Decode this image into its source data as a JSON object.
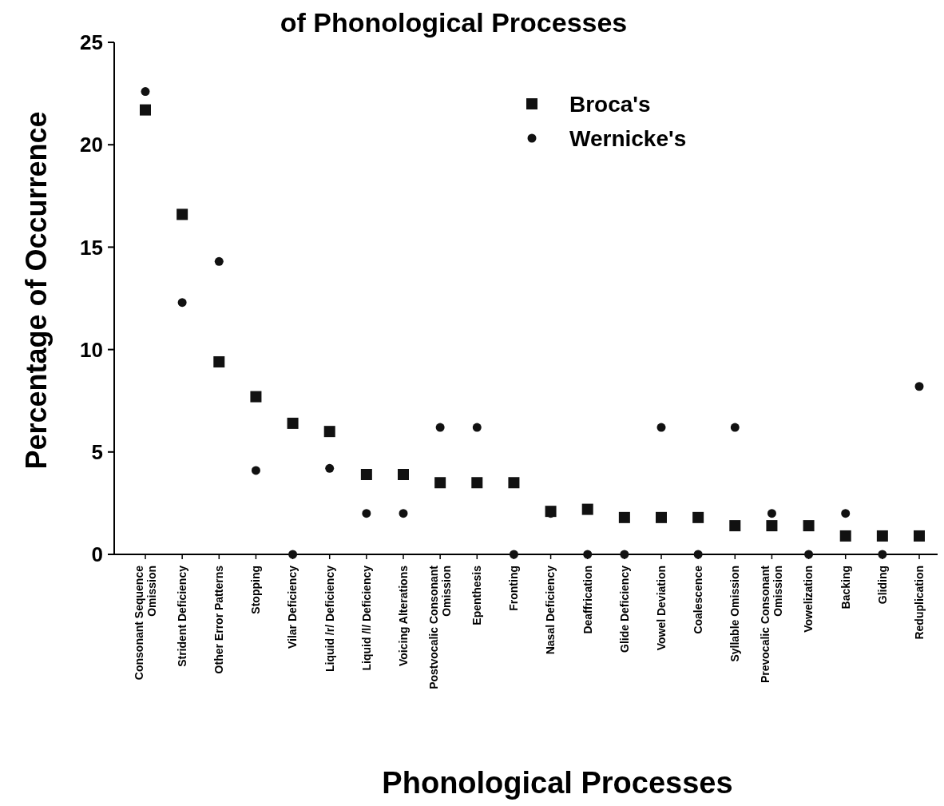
{
  "chart_data": {
    "type": "scatter",
    "title": "of Phonological Processes",
    "xlabel": "Phonological Processes",
    "ylabel": "Percentage of Occurrence",
    "categories": [
      "Consonant Sequence\nOmission",
      "Strident Deficiency",
      "Other Error Patterns",
      "Stopping",
      "Vilar Deficiency",
      "Liquid /r/ Deficiency",
      "Liquid /l/ Deficiency",
      "Voicing Alterations",
      "Postvocalic Consonant\nOmission",
      "Epenthesis",
      "Fronting",
      "Nasal Deficiency",
      "Deaffrication",
      "Glide Deficiency",
      "Vowel Deviation",
      "Coalescence",
      "Syllable Omission",
      "Prevocalic Consonant\nOmission",
      "Vowelization",
      "Backing",
      "Gliding",
      "Reduplication"
    ],
    "series": [
      {
        "name": "Broca's",
        "color": "#111111",
        "marker": "square",
        "values": [
          21.7,
          16.6,
          9.4,
          7.7,
          6.4,
          6.0,
          3.9,
          3.9,
          3.5,
          3.5,
          3.5,
          2.1,
          2.2,
          1.8,
          1.8,
          1.8,
          1.4,
          1.4,
          1.4,
          0.9,
          0.9,
          0.9
        ]
      },
      {
        "name": "Wernicke's",
        "color": "#111111",
        "marker": "circle",
        "values": [
          22.6,
          12.3,
          14.3,
          4.1,
          0,
          4.2,
          2.0,
          2.0,
          6.2,
          6.2,
          0,
          2.0,
          0,
          0,
          6.2,
          0,
          6.2,
          2.0,
          0,
          2.0,
          0,
          8.2
        ]
      }
    ],
    "ylim": [
      0,
      25
    ],
    "yticks": [
      0,
      5,
      10,
      15,
      20,
      25
    ],
    "grid": false,
    "legend": "top right"
  }
}
